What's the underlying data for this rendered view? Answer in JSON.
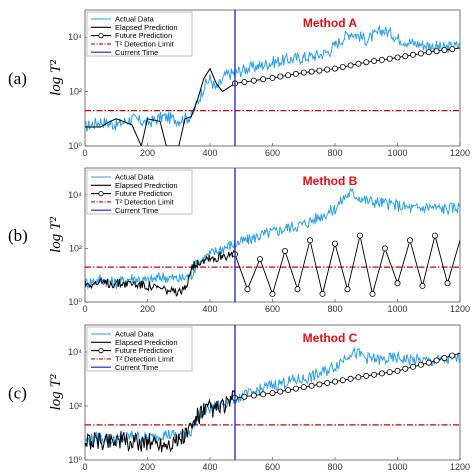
{
  "panels": [
    {
      "label": "(a)",
      "method": "Method A",
      "future_kind": "smooth"
    },
    {
      "label": "(b)",
      "method": "Method B",
      "future_kind": "oscillating"
    },
    {
      "label": "(c)",
      "method": "Method C",
      "future_kind": "smooth"
    }
  ],
  "ylabel": "log T²",
  "legend": {
    "actual": "Actual Data",
    "elapsed": "Elapsed Prediction",
    "future": "Future Prediction",
    "limit": "T² Detection Limit",
    "current": "Current Time"
  },
  "x_ticks": [
    "0",
    "200",
    "400",
    "600",
    "800",
    "1000",
    "1200"
  ],
  "y_ticks": [
    "10⁰",
    "10²",
    "10⁴"
  ],
  "colors": {
    "actual": "#2e9fe6",
    "elapsed": "#000000",
    "future": "#000000",
    "limit": "#cc0000",
    "current": "#1f1fbf",
    "method": "#dd1111"
  },
  "chart_data": [
    {
      "type": "line",
      "title": "Method A",
      "xlim": [
        0,
        1200
      ],
      "ylim_log10": [
        0,
        5
      ],
      "current_time": 480,
      "detection_limit": 20,
      "actual": [
        [
          0,
          5
        ],
        [
          50,
          8
        ],
        [
          100,
          6
        ],
        [
          150,
          10
        ],
        [
          200,
          7
        ],
        [
          250,
          12
        ],
        [
          300,
          9
        ],
        [
          340,
          12
        ],
        [
          360,
          40
        ],
        [
          380,
          150
        ],
        [
          400,
          300
        ],
        [
          420,
          120
        ],
        [
          450,
          400
        ],
        [
          480,
          500
        ],
        [
          520,
          700
        ],
        [
          560,
          900
        ],
        [
          600,
          1200
        ],
        [
          650,
          1500
        ],
        [
          700,
          1800
        ],
        [
          750,
          2200
        ],
        [
          780,
          3000
        ],
        [
          800,
          5000
        ],
        [
          830,
          10000
        ],
        [
          850,
          15000
        ],
        [
          870,
          12000
        ],
        [
          900,
          8000
        ],
        [
          930,
          12000
        ],
        [
          950,
          18000
        ],
        [
          980,
          14000
        ],
        [
          1000,
          9000
        ],
        [
          1050,
          6000
        ],
        [
          1100,
          5000
        ],
        [
          1150,
          4000
        ],
        [
          1200,
          5000
        ]
      ],
      "elapsed": [
        [
          0,
          5
        ],
        [
          50,
          5
        ],
        [
          80,
          8
        ],
        [
          100,
          10
        ],
        [
          150,
          6
        ],
        [
          180,
          1
        ],
        [
          200,
          10
        ],
        [
          240,
          8
        ],
        [
          260,
          1
        ],
        [
          300,
          1
        ],
        [
          320,
          10
        ],
        [
          340,
          12
        ],
        [
          360,
          50
        ],
        [
          380,
          300
        ],
        [
          400,
          700
        ],
        [
          420,
          200
        ],
        [
          440,
          100
        ],
        [
          480,
          200
        ]
      ],
      "future": [
        [
          480,
          200
        ],
        [
          600,
          320
        ],
        [
          700,
          500
        ],
        [
          800,
          700
        ],
        [
          900,
          1200
        ],
        [
          1000,
          1800
        ],
        [
          1100,
          2800
        ],
        [
          1200,
          4000
        ]
      ]
    },
    {
      "type": "line",
      "title": "Method B",
      "xlim": [
        0,
        1200
      ],
      "ylim_log10": [
        0,
        5
      ],
      "current_time": 480,
      "detection_limit": 20,
      "actual": [
        [
          0,
          5
        ],
        [
          50,
          7
        ],
        [
          100,
          5
        ],
        [
          150,
          8
        ],
        [
          200,
          6
        ],
        [
          250,
          9
        ],
        [
          300,
          7
        ],
        [
          340,
          10
        ],
        [
          360,
          30
        ],
        [
          400,
          60
        ],
        [
          440,
          100
        ],
        [
          480,
          150
        ],
        [
          520,
          200
        ],
        [
          560,
          300
        ],
        [
          600,
          400
        ],
        [
          650,
          600
        ],
        [
          700,
          800
        ],
        [
          750,
          1500
        ],
        [
          800,
          3000
        ],
        [
          830,
          8000
        ],
        [
          850,
          12000
        ],
        [
          880,
          8000
        ],
        [
          900,
          6000
        ],
        [
          950,
          5000
        ],
        [
          1000,
          4000
        ],
        [
          1050,
          3000
        ],
        [
          1100,
          3500
        ],
        [
          1150,
          3000
        ],
        [
          1200,
          3500
        ]
      ],
      "elapsed": [
        [
          0,
          5
        ],
        [
          80,
          5
        ],
        [
          150,
          5
        ],
        [
          200,
          4
        ],
        [
          250,
          3
        ],
        [
          300,
          2
        ],
        [
          320,
          3
        ],
        [
          340,
          20
        ],
        [
          360,
          30
        ],
        [
          380,
          40
        ],
        [
          400,
          50
        ],
        [
          420,
          40
        ],
        [
          440,
          60
        ],
        [
          460,
          50
        ],
        [
          480,
          60
        ]
      ],
      "future": [
        [
          480,
          60
        ],
        [
          520,
          3
        ],
        [
          560,
          40
        ],
        [
          600,
          2
        ],
        [
          640,
          80
        ],
        [
          680,
          3
        ],
        [
          720,
          200
        ],
        [
          760,
          2
        ],
        [
          800,
          150
        ],
        [
          840,
          3
        ],
        [
          880,
          300
        ],
        [
          920,
          2
        ],
        [
          960,
          100
        ],
        [
          1000,
          5
        ],
        [
          1040,
          200
        ],
        [
          1080,
          4
        ],
        [
          1120,
          300
        ],
        [
          1160,
          5
        ],
        [
          1200,
          200
        ]
      ]
    },
    {
      "type": "line",
      "title": "Method C",
      "xlim": [
        0,
        1200
      ],
      "ylim_log10": [
        0,
        5
      ],
      "current_time": 480,
      "detection_limit": 20,
      "actual": [
        [
          0,
          5
        ],
        [
          50,
          7
        ],
        [
          100,
          5
        ],
        [
          150,
          8
        ],
        [
          200,
          6
        ],
        [
          250,
          9
        ],
        [
          300,
          8
        ],
        [
          340,
          12
        ],
        [
          360,
          40
        ],
        [
          400,
          80
        ],
        [
          440,
          120
        ],
        [
          480,
          200
        ],
        [
          520,
          250
        ],
        [
          560,
          400
        ],
        [
          600,
          600
        ],
        [
          650,
          800
        ],
        [
          700,
          1000
        ],
        [
          750,
          1500
        ],
        [
          800,
          3000
        ],
        [
          830,
          6000
        ],
        [
          850,
          10000
        ],
        [
          880,
          8000
        ],
        [
          900,
          6000
        ],
        [
          950,
          5000
        ],
        [
          1000,
          6000
        ],
        [
          1050,
          5000
        ],
        [
          1100,
          4500
        ],
        [
          1150,
          5000
        ],
        [
          1200,
          6000
        ]
      ],
      "elapsed": [
        [
          0,
          5
        ],
        [
          50,
          5
        ],
        [
          100,
          6
        ],
        [
          150,
          4
        ],
        [
          200,
          5
        ],
        [
          250,
          4
        ],
        [
          300,
          5
        ],
        [
          340,
          15
        ],
        [
          360,
          40
        ],
        [
          380,
          60
        ],
        [
          400,
          80
        ],
        [
          420,
          70
        ],
        [
          440,
          100
        ],
        [
          460,
          120
        ],
        [
          480,
          200
        ]
      ],
      "future": [
        [
          480,
          200
        ],
        [
          600,
          300
        ],
        [
          700,
          500
        ],
        [
          800,
          800
        ],
        [
          900,
          1300
        ],
        [
          1000,
          2000
        ],
        [
          1100,
          4000
        ],
        [
          1200,
          9000
        ]
      ]
    }
  ]
}
